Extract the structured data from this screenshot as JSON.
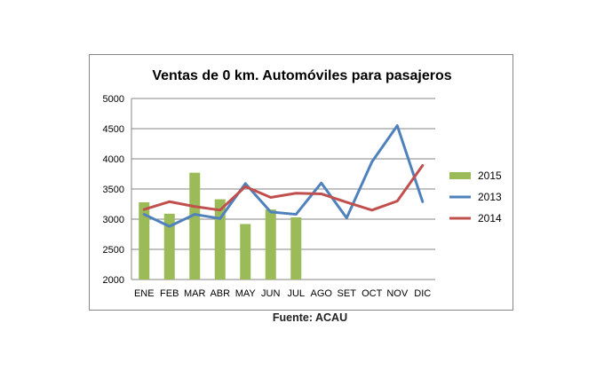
{
  "chart_data": {
    "type": "bar+line",
    "title": "Ventas de 0 km.  Automóviles para pasajeros",
    "categories": [
      "ENE",
      "FEB",
      "MAR",
      "ABR",
      "MAY",
      "JUN",
      "JUL",
      "AGO",
      "SET",
      "OCT",
      "NOV",
      "DIC"
    ],
    "ylim": [
      2000,
      5000
    ],
    "yticks": [
      2000,
      2500,
      3000,
      3500,
      4000,
      4500,
      5000
    ],
    "grid": true,
    "legend": "right",
    "series": [
      {
        "name": "2015",
        "kind": "bar",
        "color": "#9bbb59",
        "values": [
          3280,
          3090,
          3770,
          3330,
          2920,
          3160,
          3030,
          null,
          null,
          null,
          null,
          null
        ]
      },
      {
        "name": "2013",
        "kind": "line",
        "color": "#4f81bd",
        "values": [
          3080,
          2880,
          3080,
          3010,
          3590,
          3120,
          3080,
          3600,
          3020,
          3950,
          4550,
          3290
        ]
      },
      {
        "name": "2014",
        "kind": "line",
        "color": "#c0504d",
        "values": [
          3160,
          3290,
          3210,
          3150,
          3540,
          3360,
          3430,
          3420,
          3280,
          3150,
          3300,
          3890
        ]
      }
    ]
  },
  "source_text": "Fuente: ACAU"
}
